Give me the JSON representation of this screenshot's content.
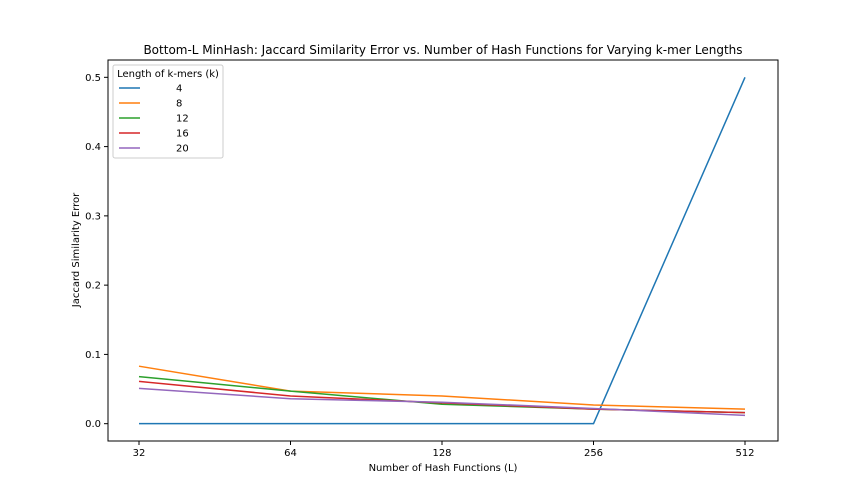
{
  "chart_data": {
    "type": "line",
    "title": "Bottom-L MinHash: Jaccard Similarity Error vs. Number of Hash Functions for Varying k-mer Lengths",
    "xlabel": "Number of Hash Functions (L)",
    "ylabel": "Jaccard Similarity Error",
    "categories": [
      "32",
      "64",
      "128",
      "256",
      "512"
    ],
    "xscale": "log2",
    "ylim": [
      -0.025,
      0.525
    ],
    "yticks": [
      "0.0",
      "0.1",
      "0.2",
      "0.3",
      "0.4",
      "0.5"
    ],
    "ytick_values": [
      0.0,
      0.1,
      0.2,
      0.3,
      0.4,
      0.5
    ],
    "grid": false,
    "legend": {
      "title": "Length of k-mers (k)",
      "placement": "top-left"
    },
    "series": [
      {
        "name": "4",
        "color": "#1f77b4",
        "values": [
          0.0,
          0.0,
          0.0,
          0.0,
          0.5
        ]
      },
      {
        "name": "8",
        "color": "#ff7f0e",
        "values": [
          0.083,
          0.047,
          0.04,
          0.027,
          0.021
        ]
      },
      {
        "name": "12",
        "color": "#2ca02c",
        "values": [
          0.068,
          0.047,
          0.028,
          0.021,
          0.016
        ]
      },
      {
        "name": "16",
        "color": "#d62728",
        "values": [
          0.061,
          0.04,
          0.03,
          0.021,
          0.016
        ]
      },
      {
        "name": "20",
        "color": "#9467bd",
        "values": [
          0.051,
          0.036,
          0.031,
          0.022,
          0.012
        ]
      }
    ]
  }
}
